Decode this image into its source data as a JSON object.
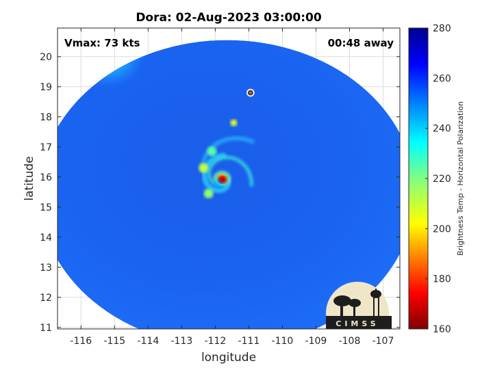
{
  "chart_data": {
    "type": "heatmap",
    "title": "Dora: 02-Aug-2023 03:00:00",
    "xlabel": "longitude",
    "ylabel": "latitude",
    "xlim": [
      -116.7,
      -106.5
    ],
    "ylim": [
      10.95,
      20.95
    ],
    "x_ticks": [
      -116,
      -115,
      -114,
      -113,
      -112,
      -111,
      -110,
      -109,
      -108,
      -107
    ],
    "y_ticks": [
      11,
      12,
      13,
      14,
      15,
      16,
      17,
      18,
      19,
      20
    ],
    "grid": true,
    "annotations": {
      "vmax": "Vmax: 73 kts",
      "time_away": "00:48 away"
    },
    "storm_center": {
      "lon": -111.8,
      "lat": 15.95
    },
    "swath": {
      "center_lon": -111.65,
      "center_lat": 15.45,
      "radius_lon": 5.6,
      "radius_lat": 5.1
    },
    "colorbar": {
      "label": "Brightness Temp - Horizontal Polarization",
      "range": [
        160,
        280
      ],
      "ticks": [
        160,
        180,
        200,
        220,
        240,
        260,
        280
      ],
      "colormap": "jet"
    },
    "features": [
      {
        "name": "eye",
        "lon": -111.8,
        "lat": 15.95,
        "value": 172
      },
      {
        "name": "eyewall-south",
        "lon": -111.9,
        "lat": 15.8,
        "value": 195
      },
      {
        "name": "band-north",
        "lon": -112.1,
        "lat": 16.85,
        "value": 215
      },
      {
        "name": "band-south",
        "lon": -112.2,
        "lat": 15.45,
        "value": 222
      },
      {
        "name": "band-west",
        "lon": -112.35,
        "lat": 16.3,
        "value": 228
      },
      {
        "name": "band-outer",
        "lon": -111.45,
        "lat": 17.8,
        "value": 232
      },
      {
        "name": "cold-region-nw",
        "lon": -115.2,
        "lat": 20.0,
        "value": 240
      },
      {
        "name": "cloud-feature",
        "lon": -110.95,
        "lat": 18.8,
        "value": 250
      }
    ],
    "logo_text": "CIMSS"
  }
}
